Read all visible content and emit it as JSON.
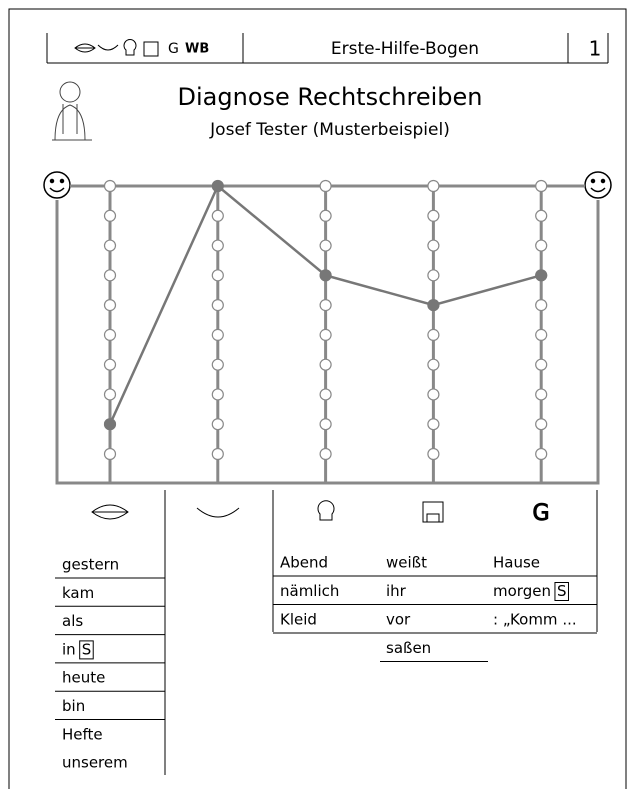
{
  "header": {
    "icon_letters": [
      "G",
      "WB"
    ],
    "title": "Erste-Hilfe-Bogen",
    "page": "1"
  },
  "title": "Diagnose Rechtschreiben",
  "subtitle": "Josef Tester (Musterbeispiel)",
  "profile": {
    "type": "line",
    "values": [
      1,
      9,
      6,
      5,
      6
    ],
    "ylim": [
      0,
      9
    ]
  },
  "lists": {
    "column_1": [
      {
        "word": "gestern"
      },
      {
        "word": "kam"
      },
      {
        "word": "als"
      },
      {
        "word": "in",
        "mark": "S"
      },
      {
        "word": "heute"
      },
      {
        "word": "bin"
      },
      {
        "word": "Hefte"
      },
      {
        "word": "unserem"
      }
    ],
    "table": [
      [
        {
          "word": "Abend"
        },
        {
          "word": "weißt"
        },
        {
          "word": "Hause"
        }
      ],
      [
        {
          "word": "nämlich"
        },
        {
          "word": "ihr"
        },
        {
          "word": "morgen",
          "mark": "S"
        }
      ],
      [
        {
          "word": "Kleid"
        },
        {
          "word": "vor"
        },
        {
          "word": ": „Komm ..."
        }
      ],
      [
        null,
        {
          "word": "saßen"
        },
        null
      ]
    ]
  }
}
